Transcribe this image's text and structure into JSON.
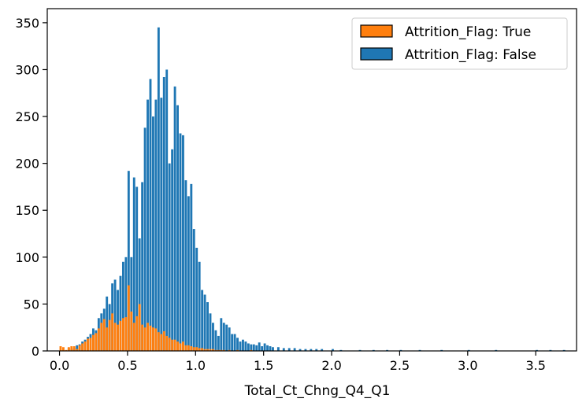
{
  "chart_data": {
    "type": "bar",
    "subtype": "histogram",
    "title": "",
    "xlabel": "Total_Ct_Chng_Q4_Q1",
    "ylabel": "",
    "xlim": [
      -0.09,
      3.8
    ],
    "ylim": [
      0,
      365
    ],
    "xticks": [
      "0.0",
      "0.5",
      "1.0",
      "1.5",
      "2.0",
      "2.5",
      "3.0",
      "3.5"
    ],
    "yticks": [
      "0",
      "50",
      "100",
      "150",
      "200",
      "250",
      "300",
      "350"
    ],
    "grid": false,
    "legend_position": "upper right",
    "series": [
      {
        "name": "Attrition_Flag: True",
        "color": "#ff7f0e",
        "bins": [
          [
            0.0,
            5
          ],
          [
            0.02,
            4
          ],
          [
            0.04,
            1
          ],
          [
            0.06,
            4
          ],
          [
            0.08,
            5
          ],
          [
            0.1,
            5
          ],
          [
            0.12,
            2
          ],
          [
            0.14,
            6
          ],
          [
            0.16,
            8
          ],
          [
            0.18,
            10
          ],
          [
            0.2,
            13
          ],
          [
            0.22,
            14
          ],
          [
            0.24,
            17
          ],
          [
            0.26,
            19
          ],
          [
            0.28,
            24
          ],
          [
            0.3,
            30
          ],
          [
            0.32,
            34
          ],
          [
            0.34,
            25
          ],
          [
            0.36,
            33
          ],
          [
            0.38,
            40
          ],
          [
            0.4,
            30
          ],
          [
            0.42,
            28
          ],
          [
            0.44,
            32
          ],
          [
            0.46,
            35
          ],
          [
            0.48,
            36
          ],
          [
            0.5,
            70
          ],
          [
            0.52,
            42
          ],
          [
            0.54,
            30
          ],
          [
            0.56,
            37
          ],
          [
            0.58,
            50
          ],
          [
            0.6,
            28
          ],
          [
            0.62,
            25
          ],
          [
            0.64,
            30
          ],
          [
            0.66,
            27
          ],
          [
            0.68,
            25
          ],
          [
            0.7,
            24
          ],
          [
            0.72,
            20
          ],
          [
            0.74,
            18
          ],
          [
            0.76,
            21
          ],
          [
            0.78,
            16
          ],
          [
            0.8,
            14
          ],
          [
            0.82,
            12
          ],
          [
            0.84,
            12
          ],
          [
            0.86,
            10
          ],
          [
            0.88,
            8
          ],
          [
            0.9,
            10
          ],
          [
            0.92,
            6
          ],
          [
            0.94,
            6
          ],
          [
            0.96,
            5
          ],
          [
            0.98,
            4
          ],
          [
            1.0,
            4
          ],
          [
            1.02,
            3
          ],
          [
            1.04,
            3
          ],
          [
            1.06,
            2
          ],
          [
            1.08,
            2
          ],
          [
            1.1,
            2
          ],
          [
            1.12,
            2
          ],
          [
            1.14,
            1
          ],
          [
            1.16,
            1
          ],
          [
            1.18,
            1
          ],
          [
            1.2,
            1
          ],
          [
            1.24,
            1
          ],
          [
            1.3,
            1
          ],
          [
            1.4,
            1
          ]
        ]
      },
      {
        "name": "Attrition_Flag: False",
        "color": "#1f77b4",
        "bins": [
          [
            0.06,
            3
          ],
          [
            0.08,
            2
          ],
          [
            0.1,
            3
          ],
          [
            0.12,
            6
          ],
          [
            0.14,
            7
          ],
          [
            0.16,
            10
          ],
          [
            0.18,
            12
          ],
          [
            0.2,
            15
          ],
          [
            0.22,
            18
          ],
          [
            0.24,
            24
          ],
          [
            0.26,
            22
          ],
          [
            0.28,
            35
          ],
          [
            0.3,
            40
          ],
          [
            0.32,
            45
          ],
          [
            0.34,
            58
          ],
          [
            0.36,
            50
          ],
          [
            0.38,
            72
          ],
          [
            0.4,
            76
          ],
          [
            0.42,
            65
          ],
          [
            0.44,
            80
          ],
          [
            0.46,
            95
          ],
          [
            0.48,
            100
          ],
          [
            0.5,
            192
          ],
          [
            0.52,
            100
          ],
          [
            0.54,
            185
          ],
          [
            0.56,
            175
          ],
          [
            0.58,
            120
          ],
          [
            0.6,
            180
          ],
          [
            0.62,
            238
          ],
          [
            0.64,
            268
          ],
          [
            0.66,
            290
          ],
          [
            0.68,
            250
          ],
          [
            0.7,
            268
          ],
          [
            0.72,
            345
          ],
          [
            0.74,
            270
          ],
          [
            0.76,
            292
          ],
          [
            0.78,
            300
          ],
          [
            0.8,
            200
          ],
          [
            0.82,
            215
          ],
          [
            0.84,
            282
          ],
          [
            0.86,
            262
          ],
          [
            0.88,
            232
          ],
          [
            0.9,
            230
          ],
          [
            0.92,
            182
          ],
          [
            0.94,
            165
          ],
          [
            0.96,
            178
          ],
          [
            0.98,
            130
          ],
          [
            1.0,
            110
          ],
          [
            1.02,
            95
          ],
          [
            1.04,
            65
          ],
          [
            1.06,
            60
          ],
          [
            1.08,
            52
          ],
          [
            1.1,
            40
          ],
          [
            1.12,
            30
          ],
          [
            1.14,
            22
          ],
          [
            1.16,
            16
          ],
          [
            1.18,
            35
          ],
          [
            1.2,
            30
          ],
          [
            1.22,
            28
          ],
          [
            1.24,
            25
          ],
          [
            1.26,
            18
          ],
          [
            1.28,
            18
          ],
          [
            1.3,
            14
          ],
          [
            1.32,
            10
          ],
          [
            1.34,
            12
          ],
          [
            1.36,
            10
          ],
          [
            1.38,
            8
          ],
          [
            1.4,
            7
          ],
          [
            1.42,
            7
          ],
          [
            1.44,
            6
          ],
          [
            1.46,
            9
          ],
          [
            1.48,
            5
          ],
          [
            1.5,
            8
          ],
          [
            1.52,
            6
          ],
          [
            1.54,
            5
          ],
          [
            1.56,
            4
          ],
          [
            1.6,
            4
          ],
          [
            1.64,
            3
          ],
          [
            1.68,
            3
          ],
          [
            1.72,
            3
          ],
          [
            1.76,
            2
          ],
          [
            1.8,
            2
          ],
          [
            1.84,
            2
          ],
          [
            1.88,
            2
          ],
          [
            1.92,
            2
          ],
          [
            2.0,
            2
          ],
          [
            2.06,
            1
          ],
          [
            2.2,
            1
          ],
          [
            2.3,
            1
          ],
          [
            2.4,
            1
          ],
          [
            2.5,
            1
          ],
          [
            2.64,
            1
          ],
          [
            2.8,
            1
          ],
          [
            3.0,
            1
          ],
          [
            3.2,
            1
          ],
          [
            3.5,
            1
          ],
          [
            3.6,
            1
          ],
          [
            3.7,
            1
          ]
        ]
      }
    ],
    "bin_width": 0.02
  }
}
